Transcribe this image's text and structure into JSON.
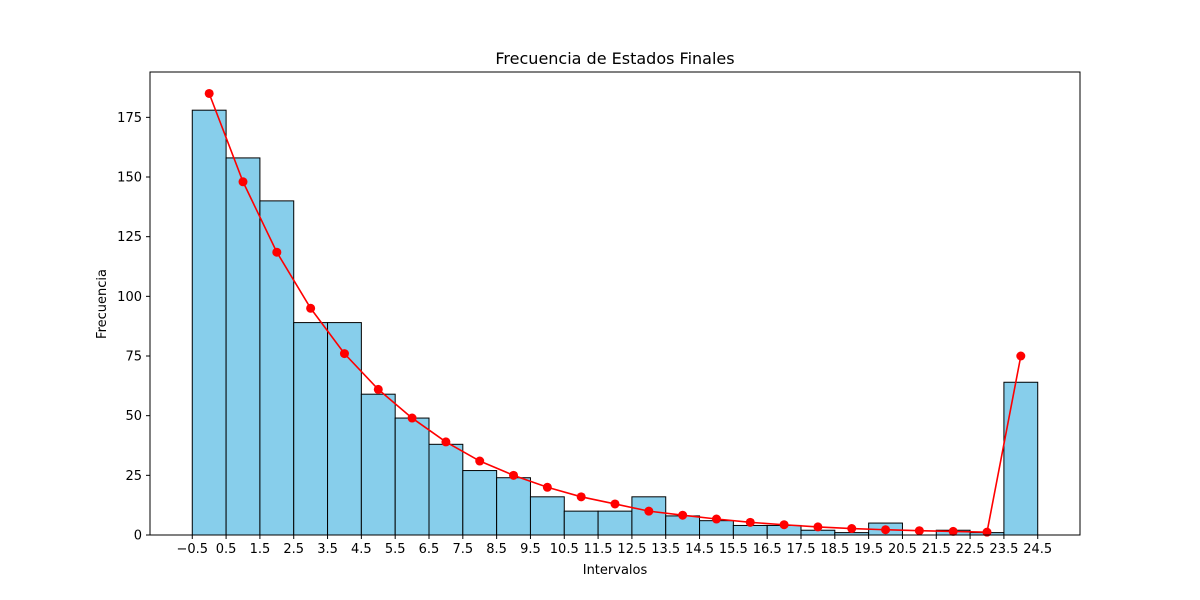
{
  "chart_data": {
    "type": "bar",
    "title": "Frecuencia de Estados Finales",
    "xlabel": "Intervalos",
    "ylabel": "Frecuencia",
    "xlim": [
      -1.75,
      25.75
    ],
    "ylim": [
      0,
      194
    ],
    "x_ticks": [
      -0.5,
      0.5,
      1.5,
      2.5,
      3.5,
      4.5,
      5.5,
      6.5,
      7.5,
      8.5,
      9.5,
      10.5,
      11.5,
      12.5,
      13.5,
      14.5,
      15.5,
      16.5,
      17.5,
      18.5,
      19.5,
      20.5,
      21.5,
      22.5,
      23.5,
      24.5
    ],
    "x_tick_labels": [
      "−0.5",
      "0.5",
      "1.5",
      "2.5",
      "3.5",
      "4.5",
      "5.5",
      "6.5",
      "7.5",
      "8.5",
      "9.5",
      "10.5",
      "11.5",
      "12.5",
      "13.5",
      "14.5",
      "15.5",
      "16.5",
      "17.5",
      "18.5",
      "19.5",
      "20.5",
      "21.5",
      "22.5",
      "23.5",
      "24.5"
    ],
    "y_ticks": [
      0,
      25,
      50,
      75,
      100,
      125,
      150,
      175
    ],
    "y_tick_labels": [
      "0",
      "25",
      "50",
      "75",
      "100",
      "125",
      "150",
      "175"
    ],
    "bins": [
      -0.5,
      0.5,
      1.5,
      2.5,
      3.5,
      4.5,
      5.5,
      6.5,
      7.5,
      8.5,
      9.5,
      10.5,
      11.5,
      12.5,
      13.5,
      14.5,
      15.5,
      16.5,
      17.5,
      18.5,
      19.5,
      20.5,
      21.5,
      22.5,
      23.5,
      24.5
    ],
    "bar_values": [
      178,
      158,
      140,
      89,
      89,
      59,
      49,
      38,
      27,
      24,
      16,
      10,
      10,
      16,
      8,
      6,
      4,
      4,
      2,
      1,
      5,
      0,
      2,
      1,
      64
    ],
    "line_x": [
      0,
      1,
      2,
      3,
      4,
      5,
      6,
      7,
      8,
      9,
      10,
      11,
      12,
      13,
      14,
      15,
      16,
      17,
      18,
      19,
      20,
      21,
      22,
      23,
      24
    ],
    "line_values": [
      185,
      148,
      118.5,
      95,
      76,
      61,
      49,
      39,
      31,
      25,
      20,
      16,
      13,
      10,
      8.3,
      6.7,
      5.3,
      4.3,
      3.4,
      2.7,
      2.2,
      1.8,
      1.5,
      1.2,
      75
    ],
    "colors": {
      "bar_fill": "#87ceeb",
      "bar_edge": "#000000",
      "line": "#ff0000"
    },
    "grid": false,
    "legend": "none"
  }
}
